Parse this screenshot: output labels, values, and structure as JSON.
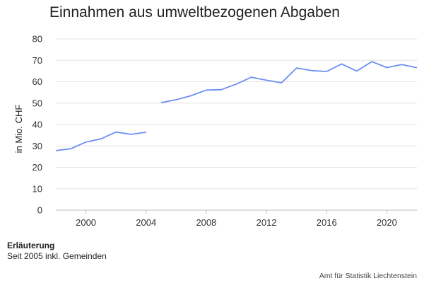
{
  "chart_data": {
    "type": "line",
    "title": "Einnahmen aus umweltbezogenen Abgaben",
    "xlabel": "",
    "ylabel": "in Mio. CHF",
    "xlim": [
      1998,
      2022
    ],
    "ylim": [
      0,
      80
    ],
    "yticks": [
      0,
      10,
      20,
      30,
      40,
      50,
      60,
      70,
      80
    ],
    "xticks": [
      2000,
      2004,
      2008,
      2012,
      2016,
      2020
    ],
    "grid": true,
    "legend": "none",
    "series": [
      {
        "color": "#6b8ef0",
        "segments": [
          [
            [
              1998,
              27.8
            ],
            [
              1999,
              28.7
            ],
            [
              2000,
              31.8
            ],
            [
              2001,
              33.3
            ],
            [
              2002,
              36.5
            ],
            [
              2003,
              35.4
            ],
            [
              2004,
              36.4
            ]
          ],
          [
            [
              2005,
              50.2
            ],
            [
              2006,
              51.6
            ],
            [
              2007,
              53.5
            ],
            [
              2008,
              56.1
            ],
            [
              2009,
              56.3
            ],
            [
              2010,
              58.9
            ],
            [
              2011,
              62.1
            ],
            [
              2012,
              60.7
            ],
            [
              2013,
              59.5
            ],
            [
              2014,
              66.4
            ],
            [
              2015,
              65.2
            ],
            [
              2016,
              64.8
            ],
            [
              2017,
              68.3
            ],
            [
              2018,
              65.0
            ],
            [
              2019,
              69.4
            ],
            [
              2020,
              66.6
            ],
            [
              2021,
              68.0
            ],
            [
              2022,
              66.5
            ]
          ]
        ]
      }
    ]
  },
  "notes": {
    "title": "Erläuterung",
    "text": "Seit 2005 inkl. Gemeinden"
  },
  "source": "Amt für Statistik Liechtenstein"
}
